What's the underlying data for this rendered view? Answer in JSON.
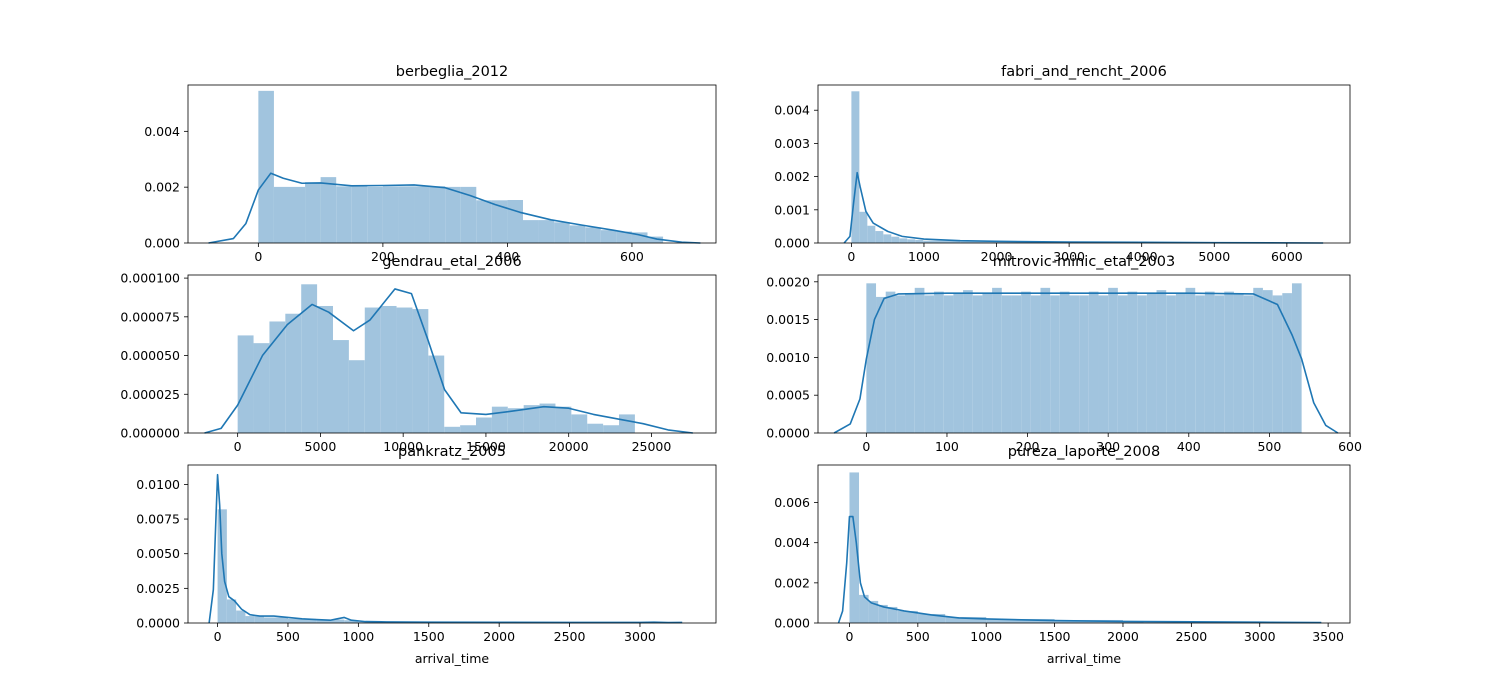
{
  "colors": {
    "hist": "#a1c4de",
    "kde": "#1f77b4",
    "axes": "#000000"
  },
  "chart_data": [
    {
      "type": "histogram+kde",
      "title": "berbeglia_2012",
      "xlabel": "",
      "xlim": [
        -113,
        735
      ],
      "ylim": [
        0,
        0.00566
      ],
      "xticks": [
        0,
        200,
        400,
        600
      ],
      "yticks": [
        0.0,
        0.002,
        0.004
      ],
      "ytick_labels": [
        "0.000",
        "0.002",
        "0.004"
      ],
      "bins": [
        [
          0,
          25,
          0.00545
        ],
        [
          25,
          50,
          0.00201
        ],
        [
          50,
          75,
          0.00201
        ],
        [
          75,
          100,
          0.00218
        ],
        [
          100,
          125,
          0.00236
        ],
        [
          125,
          150,
          0.00203
        ],
        [
          150,
          175,
          0.00203
        ],
        [
          175,
          200,
          0.00201
        ],
        [
          200,
          225,
          0.00203
        ],
        [
          225,
          250,
          0.00203
        ],
        [
          250,
          275,
          0.00203
        ],
        [
          275,
          300,
          0.00203
        ],
        [
          300,
          325,
          0.00201
        ],
        [
          325,
          350,
          0.00201
        ],
        [
          350,
          375,
          0.00153
        ],
        [
          375,
          400,
          0.00153
        ],
        [
          400,
          425,
          0.00154
        ],
        [
          425,
          450,
          0.00082
        ],
        [
          450,
          475,
          0.00082
        ],
        [
          475,
          500,
          0.00074
        ],
        [
          500,
          525,
          0.00063
        ],
        [
          525,
          550,
          0.00056
        ],
        [
          550,
          575,
          0.00046
        ],
        [
          575,
          600,
          0.00041
        ],
        [
          600,
          625,
          0.00038
        ],
        [
          625,
          650,
          0.00023
        ]
      ],
      "kde": [
        [
          -80,
          0.0
        ],
        [
          -40,
          0.00016
        ],
        [
          -20,
          0.0007
        ],
        [
          0,
          0.0019
        ],
        [
          20,
          0.0025
        ],
        [
          40,
          0.00232
        ],
        [
          70,
          0.00214
        ],
        [
          100,
          0.00215
        ],
        [
          150,
          0.00205
        ],
        [
          200,
          0.00206
        ],
        [
          250,
          0.00208
        ],
        [
          300,
          0.00198
        ],
        [
          340,
          0.0017
        ],
        [
          380,
          0.00138
        ],
        [
          420,
          0.0011
        ],
        [
          470,
          0.00083
        ],
        [
          520,
          0.00064
        ],
        [
          570,
          0.00046
        ],
        [
          610,
          0.0003
        ],
        [
          640,
          0.00014
        ],
        [
          680,
          3e-05
        ],
        [
          710,
          0.0
        ]
      ]
    },
    {
      "type": "histogram+kde",
      "title": "fabri_and_rencht_2006",
      "xlabel": "",
      "xlim": [
        -460,
        6870
      ],
      "ylim": [
        0,
        0.00476
      ],
      "xticks": [
        0,
        1000,
        2000,
        3000,
        4000,
        5000,
        6000
      ],
      "yticks": [
        0.0,
        0.001,
        0.002,
        0.003,
        0.004
      ],
      "ytick_labels": [
        "0.000",
        "0.001",
        "0.002",
        "0.003",
        "0.004"
      ],
      "bins": [
        [
          0,
          110,
          0.00457
        ],
        [
          110,
          220,
          0.00094
        ],
        [
          220,
          330,
          0.00052
        ],
        [
          330,
          440,
          0.00036
        ],
        [
          440,
          550,
          0.00026
        ],
        [
          550,
          660,
          0.00019
        ],
        [
          660,
          770,
          0.00014
        ],
        [
          770,
          880,
          0.00011
        ],
        [
          880,
          990,
          9e-05
        ],
        [
          990,
          1500,
          7e-05
        ],
        [
          1500,
          2500,
          4e-05
        ],
        [
          2500,
          4000,
          2e-05
        ],
        [
          4000,
          6500,
          1e-05
        ]
      ],
      "kde": [
        [
          -100,
          0.0
        ],
        [
          -20,
          0.0002
        ],
        [
          30,
          0.0012
        ],
        [
          80,
          0.00212
        ],
        [
          120,
          0.0017
        ],
        [
          200,
          0.00095
        ],
        [
          300,
          0.0006
        ],
        [
          500,
          0.00035
        ],
        [
          700,
          0.0002
        ],
        [
          1000,
          0.00012
        ],
        [
          1500,
          7e-05
        ],
        [
          2000,
          5e-05
        ],
        [
          3000,
          3e-05
        ],
        [
          4000,
          2e-05
        ],
        [
          5000,
          1e-05
        ],
        [
          6500,
          0.0
        ]
      ]
    },
    {
      "type": "histogram+kde",
      "title": "gendrau_etal_2006",
      "xlabel": "",
      "xlim": [
        -3000,
        28900
      ],
      "ylim": [
        0,
        0.000102
      ],
      "xticks": [
        0,
        5000,
        10000,
        15000,
        20000,
        25000
      ],
      "yticks": [
        0.0,
        2.5e-05,
        5e-05,
        7.5e-05,
        0.0001
      ],
      "ytick_labels": [
        "0.000000",
        "0.000025",
        "0.000050",
        "0.000075",
        "0.000100"
      ],
      "bins": [
        [
          0,
          960,
          6.3e-05
        ],
        [
          960,
          1920,
          5.8e-05
        ],
        [
          1920,
          2880,
          7.2e-05
        ],
        [
          2880,
          3840,
          7.7e-05
        ],
        [
          3840,
          4800,
          9.6e-05
        ],
        [
          4800,
          5760,
          8.2e-05
        ],
        [
          5760,
          6720,
          6e-05
        ],
        [
          6720,
          7680,
          4.7e-05
        ],
        [
          7680,
          8640,
          8.1e-05
        ],
        [
          8640,
          9600,
          8.2e-05
        ],
        [
          9600,
          10560,
          8.1e-05
        ],
        [
          10560,
          11520,
          8e-05
        ],
        [
          11520,
          12480,
          5e-05
        ],
        [
          12480,
          13440,
          4e-06
        ],
        [
          13440,
          14400,
          5e-06
        ],
        [
          14400,
          15360,
          1e-05
        ],
        [
          15360,
          16320,
          1.7e-05
        ],
        [
          16320,
          17280,
          1.6e-05
        ],
        [
          17280,
          18240,
          1.8e-05
        ],
        [
          18240,
          19200,
          1.9e-05
        ],
        [
          19200,
          20160,
          1.7e-05
        ],
        [
          20160,
          21120,
          1.2e-05
        ],
        [
          21120,
          22080,
          6e-06
        ],
        [
          22080,
          23040,
          5e-06
        ],
        [
          23040,
          24000,
          1.2e-05
        ]
      ],
      "kde": [
        [
          -2000,
          0.0
        ],
        [
          -1000,
          3e-06
        ],
        [
          0,
          1.8e-05
        ],
        [
          1500,
          5e-05
        ],
        [
          3000,
          7e-05
        ],
        [
          4500,
          8.3e-05
        ],
        [
          5500,
          7.8e-05
        ],
        [
          7000,
          6.6e-05
        ],
        [
          8000,
          7.3e-05
        ],
        [
          9500,
          9.3e-05
        ],
        [
          10500,
          9e-05
        ],
        [
          11500,
          6e-05
        ],
        [
          12500,
          2.8e-05
        ],
        [
          13500,
          1.3e-05
        ],
        [
          15000,
          1.2e-05
        ],
        [
          16500,
          1.4e-05
        ],
        [
          18500,
          1.7e-05
        ],
        [
          20000,
          1.6e-05
        ],
        [
          21500,
          1.2e-05
        ],
        [
          23000,
          9e-06
        ],
        [
          24500,
          6e-06
        ],
        [
          26000,
          2e-06
        ],
        [
          27500,
          0.0
        ]
      ]
    },
    {
      "type": "histogram+kde",
      "title": "mitrovic-minic_etal_2003",
      "xlabel": "",
      "xlim": [
        -60,
        600
      ],
      "ylim": [
        0,
        0.00209
      ],
      "xticks": [
        0,
        100,
        200,
        300,
        400,
        500,
        600
      ],
      "yticks": [
        0.0,
        0.0005,
        0.001,
        0.0015,
        0.002
      ],
      "ytick_labels": [
        "0.0000",
        "0.0005",
        "0.0010",
        "0.0015",
        "0.0020"
      ],
      "bins": [
        [
          0,
          12,
          0.00198
        ],
        [
          12,
          24,
          0.0018
        ],
        [
          24,
          36,
          0.00187
        ],
        [
          36,
          48,
          0.00182
        ],
        [
          48,
          60,
          0.00185
        ],
        [
          60,
          72,
          0.00192
        ],
        [
          72,
          84,
          0.00182
        ],
        [
          84,
          96,
          0.00187
        ],
        [
          96,
          108,
          0.00182
        ],
        [
          108,
          120,
          0.00185
        ],
        [
          120,
          132,
          0.00189
        ],
        [
          132,
          144,
          0.00182
        ],
        [
          144,
          156,
          0.00185
        ],
        [
          156,
          168,
          0.00192
        ],
        [
          168,
          180,
          0.00182
        ],
        [
          180,
          192,
          0.00182
        ],
        [
          192,
          204,
          0.00187
        ],
        [
          204,
          216,
          0.00182
        ],
        [
          216,
          228,
          0.00192
        ],
        [
          228,
          240,
          0.00182
        ],
        [
          240,
          252,
          0.00187
        ],
        [
          252,
          264,
          0.00182
        ],
        [
          264,
          276,
          0.00182
        ],
        [
          276,
          288,
          0.00187
        ],
        [
          288,
          300,
          0.00182
        ],
        [
          300,
          312,
          0.00192
        ],
        [
          312,
          324,
          0.00182
        ],
        [
          324,
          336,
          0.00187
        ],
        [
          336,
          348,
          0.00182
        ],
        [
          348,
          360,
          0.00185
        ],
        [
          360,
          372,
          0.00189
        ],
        [
          372,
          384,
          0.00182
        ],
        [
          384,
          396,
          0.00185
        ],
        [
          396,
          408,
          0.00192
        ],
        [
          408,
          420,
          0.00182
        ],
        [
          420,
          432,
          0.00187
        ],
        [
          432,
          444,
          0.00182
        ],
        [
          444,
          456,
          0.00187
        ],
        [
          456,
          468,
          0.00185
        ],
        [
          468,
          480,
          0.00182
        ],
        [
          480,
          492,
          0.00192
        ],
        [
          492,
          504,
          0.00189
        ],
        [
          504,
          516,
          0.00182
        ],
        [
          516,
          528,
          0.00185
        ],
        [
          528,
          540,
          0.00198
        ]
      ],
      "kde": [
        [
          -40,
          0.0
        ],
        [
          -20,
          0.00012
        ],
        [
          -8,
          0.00045
        ],
        [
          0,
          0.00098
        ],
        [
          10,
          0.0015
        ],
        [
          22,
          0.00178
        ],
        [
          40,
          0.00184
        ],
        [
          100,
          0.00185
        ],
        [
          200,
          0.00185
        ],
        [
          300,
          0.00185
        ],
        [
          400,
          0.00185
        ],
        [
          480,
          0.00184
        ],
        [
          510,
          0.0017
        ],
        [
          528,
          0.0013
        ],
        [
          540,
          0.00098
        ],
        [
          555,
          0.0004
        ],
        [
          570,
          0.0001
        ],
        [
          585,
          0.0
        ]
      ]
    },
    {
      "type": "histogram+kde",
      "title": "pankratz_2005",
      "xlabel": "arrival_time",
      "xlim": [
        -210,
        3540
      ],
      "ylim": [
        0,
        0.0114
      ],
      "xticks": [
        0,
        500,
        1000,
        1500,
        2000,
        2500,
        3000
      ],
      "yticks": [
        0.0,
        0.0025,
        0.005,
        0.0075,
        0.01
      ],
      "ytick_labels": [
        "0.0000",
        "0.0025",
        "0.0050",
        "0.0075",
        "0.0100"
      ],
      "bins": [
        [
          0,
          66,
          0.0082
        ],
        [
          66,
          132,
          0.0017
        ],
        [
          132,
          198,
          0.0009
        ],
        [
          198,
          264,
          0.0005
        ],
        [
          264,
          330,
          0.0005
        ],
        [
          330,
          500,
          0.0004
        ],
        [
          500,
          700,
          0.0003
        ],
        [
          700,
          900,
          0.00025
        ],
        [
          900,
          1000,
          0.0002
        ],
        [
          1000,
          1500,
          8e-05
        ],
        [
          1500,
          2000,
          5e-05
        ],
        [
          2000,
          2500,
          4e-05
        ],
        [
          2500,
          3300,
          3e-05
        ]
      ],
      "kde": [
        [
          -60,
          0.0
        ],
        [
          -30,
          0.0024
        ],
        [
          -10,
          0.008
        ],
        [
          0,
          0.0107
        ],
        [
          15,
          0.0085
        ],
        [
          30,
          0.005
        ],
        [
          50,
          0.003
        ],
        [
          80,
          0.0019
        ],
        [
          120,
          0.0016
        ],
        [
          170,
          0.001
        ],
        [
          230,
          0.0006
        ],
        [
          300,
          0.0005
        ],
        [
          400,
          0.0005
        ],
        [
          500,
          0.0004
        ],
        [
          600,
          0.0003
        ],
        [
          700,
          0.00025
        ],
        [
          800,
          0.0002
        ],
        [
          850,
          0.0003
        ],
        [
          900,
          0.0004
        ],
        [
          950,
          0.0002
        ],
        [
          1050,
          0.0001
        ],
        [
          1200,
          8e-05
        ],
        [
          1500,
          6e-05
        ],
        [
          2000,
          5e-05
        ],
        [
          2500,
          4e-05
        ],
        [
          3000,
          4e-05
        ],
        [
          3100,
          6e-05
        ],
        [
          3200,
          3e-05
        ],
        [
          3300,
          4e-05
        ]
      ]
    },
    {
      "type": "histogram+kde",
      "title": "pureza_laporte_2008",
      "xlabel": "arrival_time",
      "xlim": [
        -230,
        3660
      ],
      "ylim": [
        0,
        0.00787
      ],
      "xticks": [
        0,
        500,
        1000,
        1500,
        2000,
        2500,
        3000,
        3500
      ],
      "yticks": [
        0.0,
        0.002,
        0.004,
        0.006
      ],
      "ytick_labels": [
        "0.000",
        "0.002",
        "0.004",
        "0.006"
      ],
      "bins": [
        [
          0,
          70,
          0.0075
        ],
        [
          70,
          140,
          0.0014
        ],
        [
          140,
          210,
          0.0011
        ],
        [
          210,
          280,
          0.0009
        ],
        [
          280,
          350,
          0.0008
        ],
        [
          350,
          500,
          0.0006
        ],
        [
          500,
          700,
          0.00045
        ],
        [
          700,
          1000,
          0.0003
        ],
        [
          1000,
          1500,
          0.0002
        ],
        [
          1500,
          2000,
          0.00015
        ],
        [
          2000,
          2500,
          0.0001
        ],
        [
          2500,
          3000,
          7e-05
        ],
        [
          3000,
          3450,
          5e-05
        ]
      ],
      "kde": [
        [
          -80,
          0.0
        ],
        [
          -50,
          0.0006
        ],
        [
          -20,
          0.003
        ],
        [
          0,
          0.0053
        ],
        [
          25,
          0.0053
        ],
        [
          50,
          0.004
        ],
        [
          80,
          0.002
        ],
        [
          110,
          0.0013
        ],
        [
          160,
          0.001
        ],
        [
          250,
          0.0008
        ],
        [
          400,
          0.0006
        ],
        [
          600,
          0.0004
        ],
        [
          800,
          0.00025
        ],
        [
          1000,
          0.0002
        ],
        [
          1500,
          0.00012
        ],
        [
          2000,
          8e-05
        ],
        [
          2500,
          6e-05
        ],
        [
          3000,
          4e-05
        ],
        [
          3450,
          2e-05
        ]
      ]
    }
  ]
}
